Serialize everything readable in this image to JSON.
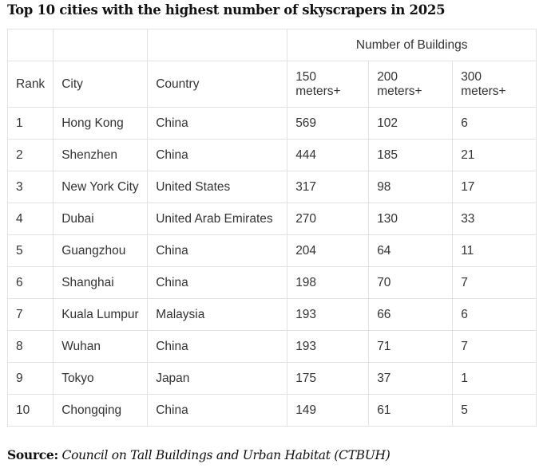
{
  "title": "Top 10 cities with the highest number of skyscrapers in 2025",
  "table": {
    "group_header": "Number of Buildings",
    "headers": [
      "Rank",
      "City",
      "Country",
      "150 meters+",
      "200 meters+",
      "300 meters+"
    ],
    "rows": [
      {
        "rank": "1",
        "city": "Hong Kong",
        "country": "China",
        "m150": "569",
        "m200": "102",
        "m300": "6"
      },
      {
        "rank": "2",
        "city": "Shenzhen",
        "country": "China",
        "m150": "444",
        "m200": "185",
        "m300": "21"
      },
      {
        "rank": "3",
        "city": "New York City",
        "country": "United States",
        "m150": "317",
        "m200": "98",
        "m300": "17"
      },
      {
        "rank": "4",
        "city": "Dubai",
        "country": "United Arab Emirates",
        "m150": "270",
        "m200": "130",
        "m300": "33"
      },
      {
        "rank": "5",
        "city": "Guangzhou",
        "country": "China",
        "m150": "204",
        "m200": "64",
        "m300": "11"
      },
      {
        "rank": "6",
        "city": "Shanghai",
        "country": "China",
        "m150": "198",
        "m200": "70",
        "m300": "7"
      },
      {
        "rank": "7",
        "city": "Kuala Lumpur",
        "country": "Malaysia",
        "m150": "193",
        "m200": "66",
        "m300": "6"
      },
      {
        "rank": "8",
        "city": "Wuhan",
        "country": "China",
        "m150": "193",
        "m200": "71",
        "m300": "7"
      },
      {
        "rank": "9",
        "city": "Tokyo",
        "country": "Japan",
        "m150": "175",
        "m200": "37",
        "m300": "1"
      },
      {
        "rank": "10",
        "city": "Chongqing",
        "country": "China",
        "m150": "149",
        "m200": "61",
        "m300": "5"
      }
    ]
  },
  "source": {
    "label": "Source:",
    "text": "Council on Tall Buildings and Urban Habitat (CTBUH)"
  }
}
